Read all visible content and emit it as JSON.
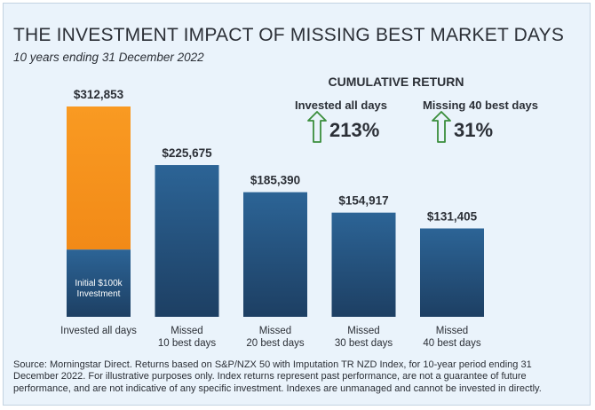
{
  "title": "THE INVESTMENT IMPACT OF MISSING BEST MARKET DAYS",
  "subtitle": "10 years ending 31 December 2022",
  "chart_data": {
    "type": "bar",
    "categories": [
      "Invested all days",
      "Missed\n10 best days",
      "Missed\n20 best days",
      "Missed\n30 best days",
      "Missed\n40 best days"
    ],
    "values": [
      312853,
      225675,
      185390,
      154917,
      131405
    ],
    "value_labels": [
      "$312,853",
      "$225,675",
      "$185,390",
      "$154,917",
      "$131,405"
    ],
    "base_value": 100000,
    "base_label": "Initial $100k\nInvestment",
    "ylim": [
      0,
      330000
    ],
    "grid": false,
    "colors": {
      "bar": "#2a5d8c",
      "bar_dark": "#1d3f61",
      "highlight": "#f7941d"
    }
  },
  "cumulative": {
    "heading": "CUMULATIVE RETURN",
    "items": [
      {
        "label": "Invested all days",
        "value": "213%"
      },
      {
        "label": "Missing 40 best days",
        "value": "31%"
      }
    ]
  },
  "source": "Source: Morningstar Direct. Returns based on S&P/NZX 50 with Imputation TR NZD Index, for 10-year period ending 31 December 2022. For illustrative purposes only. Index returns represent past performance, are not a guarantee of future performance, and are not indicative of any specific investment. Indexes are unmanaged and cannot be invested in directly."
}
